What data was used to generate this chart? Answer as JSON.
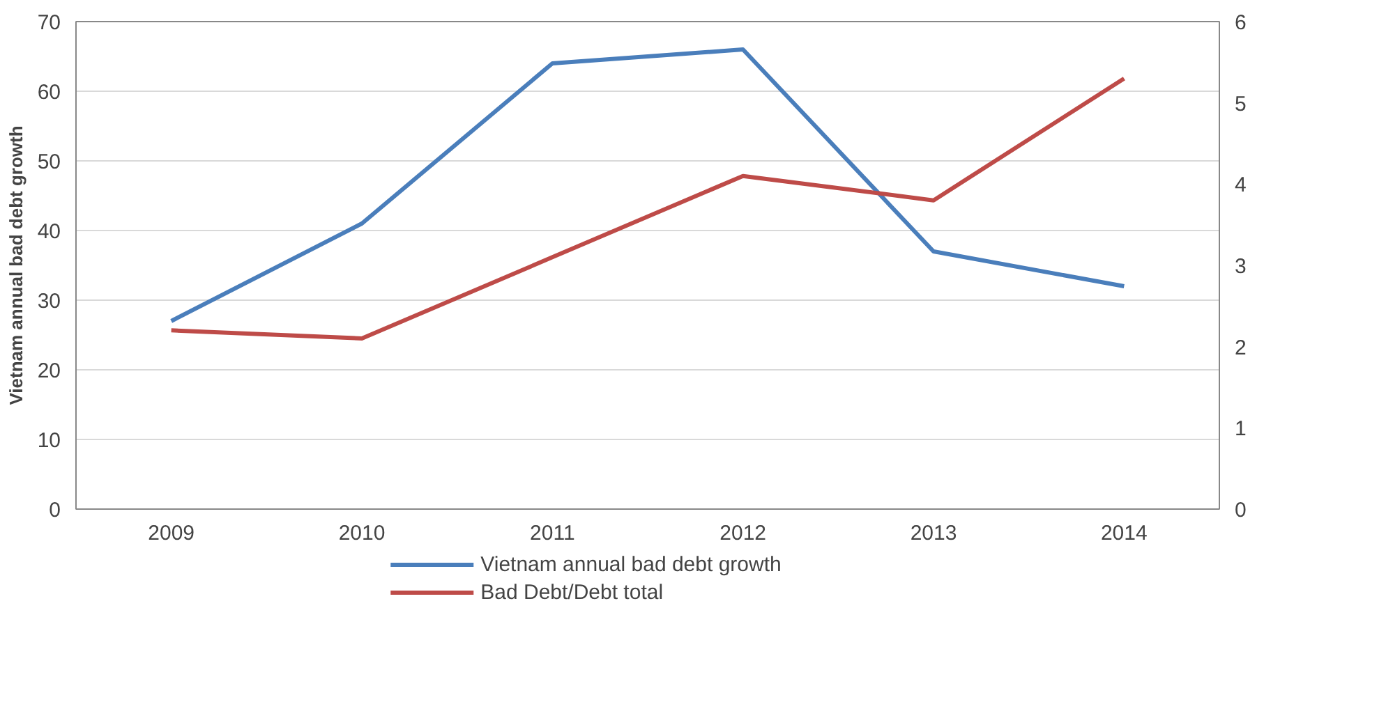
{
  "chart_data": {
    "type": "line",
    "ylabel": "Vietnam annual bad debt growth",
    "categories": [
      "2009",
      "2010",
      "2011",
      "2012",
      "2013",
      "2014"
    ],
    "series": [
      {
        "name": "Vietnam annual bad debt growth",
        "color": "#4a7ebb",
        "values": [
          27,
          41,
          64,
          66,
          37,
          32
        ]
      },
      {
        "name": "Bad Debt/Debt total",
        "color": "#be4b48",
        "values": [
          2.2,
          2.1,
          3.1,
          4.1,
          3.8,
          5.3
        ],
        "axis": "y2"
      }
    ],
    "ylim": [
      0,
      70
    ],
    "yticks": [
      0,
      10,
      20,
      30,
      40,
      50,
      60,
      70
    ],
    "y2lim": [
      0,
      6
    ],
    "y2ticks": [
      0,
      1,
      2,
      3,
      4,
      5,
      6
    ],
    "grid": "y",
    "legend": "bottom",
    "marker": "none",
    "line_style": "solid"
  }
}
